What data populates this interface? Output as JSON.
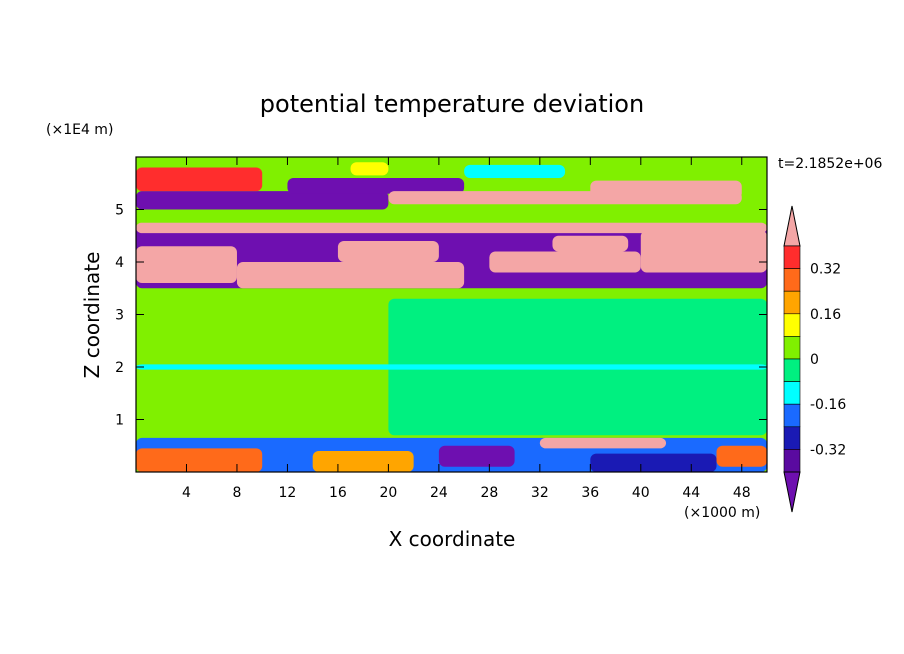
{
  "chart_data": {
    "type": "heatmap",
    "title": "potential temperature deviation",
    "xlabel": "X coordinate",
    "ylabel": "Z coordinate",
    "x_unit": "(×1000 m)",
    "y_unit": "(×1E4 m)",
    "time_label": "t=2.1852e+06",
    "xlim": [
      0,
      50
    ],
    "ylim": [
      0,
      6
    ],
    "x_ticks": [
      4,
      8,
      12,
      16,
      20,
      24,
      28,
      32,
      36,
      40,
      44,
      48
    ],
    "y_ticks": [
      1,
      2,
      3,
      4,
      5
    ],
    "colorbar": {
      "tick_labels": [
        "0.32",
        "0.16",
        "0",
        "-0.16",
        "-0.32"
      ],
      "tick_values": [
        0.32,
        0.16,
        0,
        -0.16,
        -0.32
      ],
      "levels": [
        {
          "min": 0.4,
          "max": null,
          "color": "#f4a6a6"
        },
        {
          "min": 0.32,
          "max": 0.4,
          "color": "#ff2d2d"
        },
        {
          "min": 0.24,
          "max": 0.32,
          "color": "#ff6a1a"
        },
        {
          "min": 0.16,
          "max": 0.24,
          "color": "#ffa500"
        },
        {
          "min": 0.08,
          "max": 0.16,
          "color": "#ffff00"
        },
        {
          "min": 0.0,
          "max": 0.08,
          "color": "#80f000"
        },
        {
          "min": -0.08,
          "max": 0.0,
          "color": "#00f080"
        },
        {
          "min": -0.16,
          "max": -0.08,
          "color": "#00ffff"
        },
        {
          "min": -0.24,
          "max": -0.16,
          "color": "#1a6aff"
        },
        {
          "min": -0.32,
          "max": -0.24,
          "color": "#1a1ab4"
        },
        {
          "min": -0.4,
          "max": -0.32,
          "color": "#5a0aa0"
        },
        {
          "min": null,
          "max": -0.4,
          "color": "#6e0fb0"
        }
      ]
    },
    "regions": [
      {
        "x0": 0,
        "x1": 50,
        "y0": 0,
        "y1": 6,
        "value": 0.05
      },
      {
        "x0": 0,
        "x1": 50,
        "y0": 0.6,
        "y1": 3.5,
        "value": 0.04
      },
      {
        "x0": 20,
        "x1": 50,
        "y0": 0.7,
        "y1": 3.3,
        "value": -0.03
      },
      {
        "x0": 0,
        "x1": 50,
        "y0": 1.95,
        "y1": 2.05,
        "value": -0.1
      },
      {
        "x0": 0,
        "x1": 50,
        "y0": 3.5,
        "y1": 4.7,
        "value": -0.5
      },
      {
        "x0": 0,
        "x1": 50,
        "y0": 4.55,
        "y1": 4.75,
        "value": 0.5
      },
      {
        "x0": 0,
        "x1": 8,
        "y0": 3.6,
        "y1": 4.3,
        "value": 0.5
      },
      {
        "x0": 8,
        "x1": 26,
        "y0": 3.5,
        "y1": 4.0,
        "value": 0.5
      },
      {
        "x0": 16,
        "x1": 24,
        "y0": 4.0,
        "y1": 4.4,
        "value": 0.5
      },
      {
        "x0": 28,
        "x1": 40,
        "y0": 3.8,
        "y1": 4.2,
        "value": 0.5
      },
      {
        "x0": 33,
        "x1": 39,
        "y0": 4.2,
        "y1": 4.5,
        "value": 0.5
      },
      {
        "x0": 40,
        "x1": 50,
        "y0": 3.8,
        "y1": 4.6,
        "value": 0.5
      },
      {
        "x0": 0,
        "x1": 50,
        "y0": 4.75,
        "y1": 5.1,
        "value": 0.04
      },
      {
        "x0": 0,
        "x1": 20,
        "y0": 5.0,
        "y1": 5.35,
        "value": -0.5
      },
      {
        "x0": 0,
        "x1": 10,
        "y0": 5.35,
        "y1": 5.8,
        "value": 0.35
      },
      {
        "x0": 12,
        "x1": 26,
        "y0": 5.3,
        "y1": 5.6,
        "value": -0.5
      },
      {
        "x0": 20,
        "x1": 48,
        "y0": 5.1,
        "y1": 5.35,
        "value": 0.5
      },
      {
        "x0": 36,
        "x1": 48,
        "y0": 5.2,
        "y1": 5.55,
        "value": 0.5
      },
      {
        "x0": 26,
        "x1": 34,
        "y0": 5.6,
        "y1": 5.85,
        "value": -0.1
      },
      {
        "x0": 17,
        "x1": 20,
        "y0": 5.65,
        "y1": 5.9,
        "value": 0.1
      },
      {
        "x0": 0,
        "x1": 50,
        "y0": 0.0,
        "y1": 0.65,
        "value": -0.2
      },
      {
        "x0": 0,
        "x1": 10,
        "y0": 0.0,
        "y1": 0.45,
        "value": 0.25
      },
      {
        "x0": 14,
        "x1": 22,
        "y0": 0.0,
        "y1": 0.4,
        "value": 0.2
      },
      {
        "x0": 24,
        "x1": 30,
        "y0": 0.1,
        "y1": 0.5,
        "value": -0.5
      },
      {
        "x0": 32,
        "x1": 42,
        "y0": 0.45,
        "y1": 0.65,
        "value": 0.5
      },
      {
        "x0": 36,
        "x1": 46,
        "y0": 0.0,
        "y1": 0.35,
        "value": -0.3
      },
      {
        "x0": 46,
        "x1": 50,
        "y0": 0.1,
        "y1": 0.5,
        "value": 0.3
      }
    ]
  }
}
